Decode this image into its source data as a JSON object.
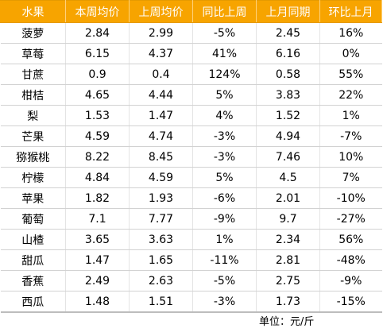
{
  "table": {
    "headers": [
      "水果",
      "本周均价",
      "上周均价",
      "同比上周",
      "上月同期",
      "环比上月"
    ],
    "rows": [
      [
        "菠萝",
        "2.84",
        "2.99",
        "-5%",
        "2.45",
        "16%"
      ],
      [
        "草莓",
        "6.15",
        "4.37",
        "41%",
        "6.16",
        "0%"
      ],
      [
        "甘蔗",
        "0.9",
        "0.4",
        "124%",
        "0.58",
        "55%"
      ],
      [
        "柑桔",
        "4.65",
        "4.44",
        "5%",
        "3.83",
        "22%"
      ],
      [
        "梨",
        "1.53",
        "1.47",
        "4%",
        "1.52",
        "1%"
      ],
      [
        "芒果",
        "4.59",
        "4.74",
        "-3%",
        "4.94",
        "-7%"
      ],
      [
        "猕猴桃",
        "8.22",
        "8.45",
        "-3%",
        "7.46",
        "10%"
      ],
      [
        "柠檬",
        "4.84",
        "4.59",
        "5%",
        "4.5",
        "7%"
      ],
      [
        "苹果",
        "1.82",
        "1.93",
        "-6%",
        "2.01",
        "-10%"
      ],
      [
        "葡萄",
        "7.1",
        "7.77",
        "-9%",
        "9.7",
        "-27%"
      ],
      [
        "山楂",
        "3.65",
        "3.63",
        "1%",
        "2.34",
        "56%"
      ],
      [
        "甜瓜",
        "1.47",
        "1.65",
        "-11%",
        "2.81",
        "-48%"
      ],
      [
        "香蕉",
        "2.49",
        "2.63",
        "-5%",
        "2.75",
        "-9%"
      ],
      [
        "西瓜",
        "1.48",
        "1.51",
        "-3%",
        "1.73",
        "-15%"
      ]
    ]
  },
  "unit_note": "单位：元/斤",
  "colors": {
    "header_background": "#f7a400",
    "header_text": "#ffffff",
    "row_border": "#d2d2d2"
  }
}
